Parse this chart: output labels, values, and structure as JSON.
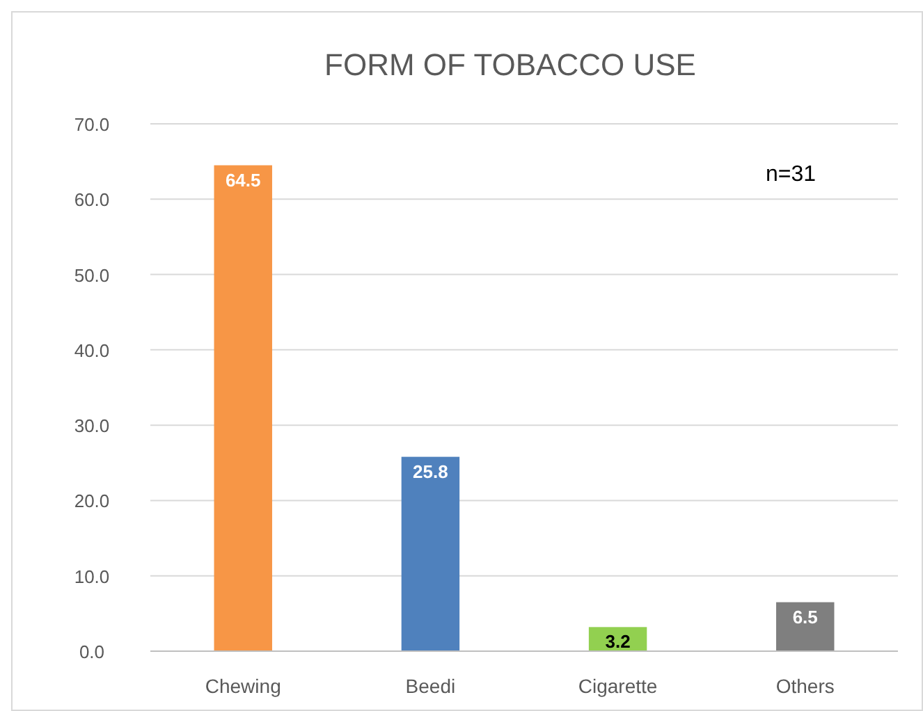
{
  "chart_data": {
    "type": "bar",
    "title": "FORM OF TOBACCO USE",
    "categories": [
      "Chewing",
      "Beedi",
      "Cigarette",
      "Others"
    ],
    "values": [
      64.5,
      25.8,
      3.2,
      6.5
    ],
    "colors": [
      "#f79646",
      "#4f81bd",
      "#92d050",
      "#7f7f7f"
    ],
    "ylim": [
      0,
      70
    ],
    "yticks": [
      {
        "value": 0,
        "label": "0.0"
      },
      {
        "value": 10,
        "label": "10.0"
      },
      {
        "value": 20,
        "label": "20.0"
      },
      {
        "value": 30,
        "label": "30.0"
      },
      {
        "value": 40,
        "label": "40.0"
      },
      {
        "value": 50,
        "label": "50.0"
      },
      {
        "value": 60,
        "label": "60.0"
      },
      {
        "value": 70,
        "label": "70.0"
      }
    ],
    "grid": "y",
    "data_labels": true,
    "annotations": [
      "n=31"
    ]
  }
}
